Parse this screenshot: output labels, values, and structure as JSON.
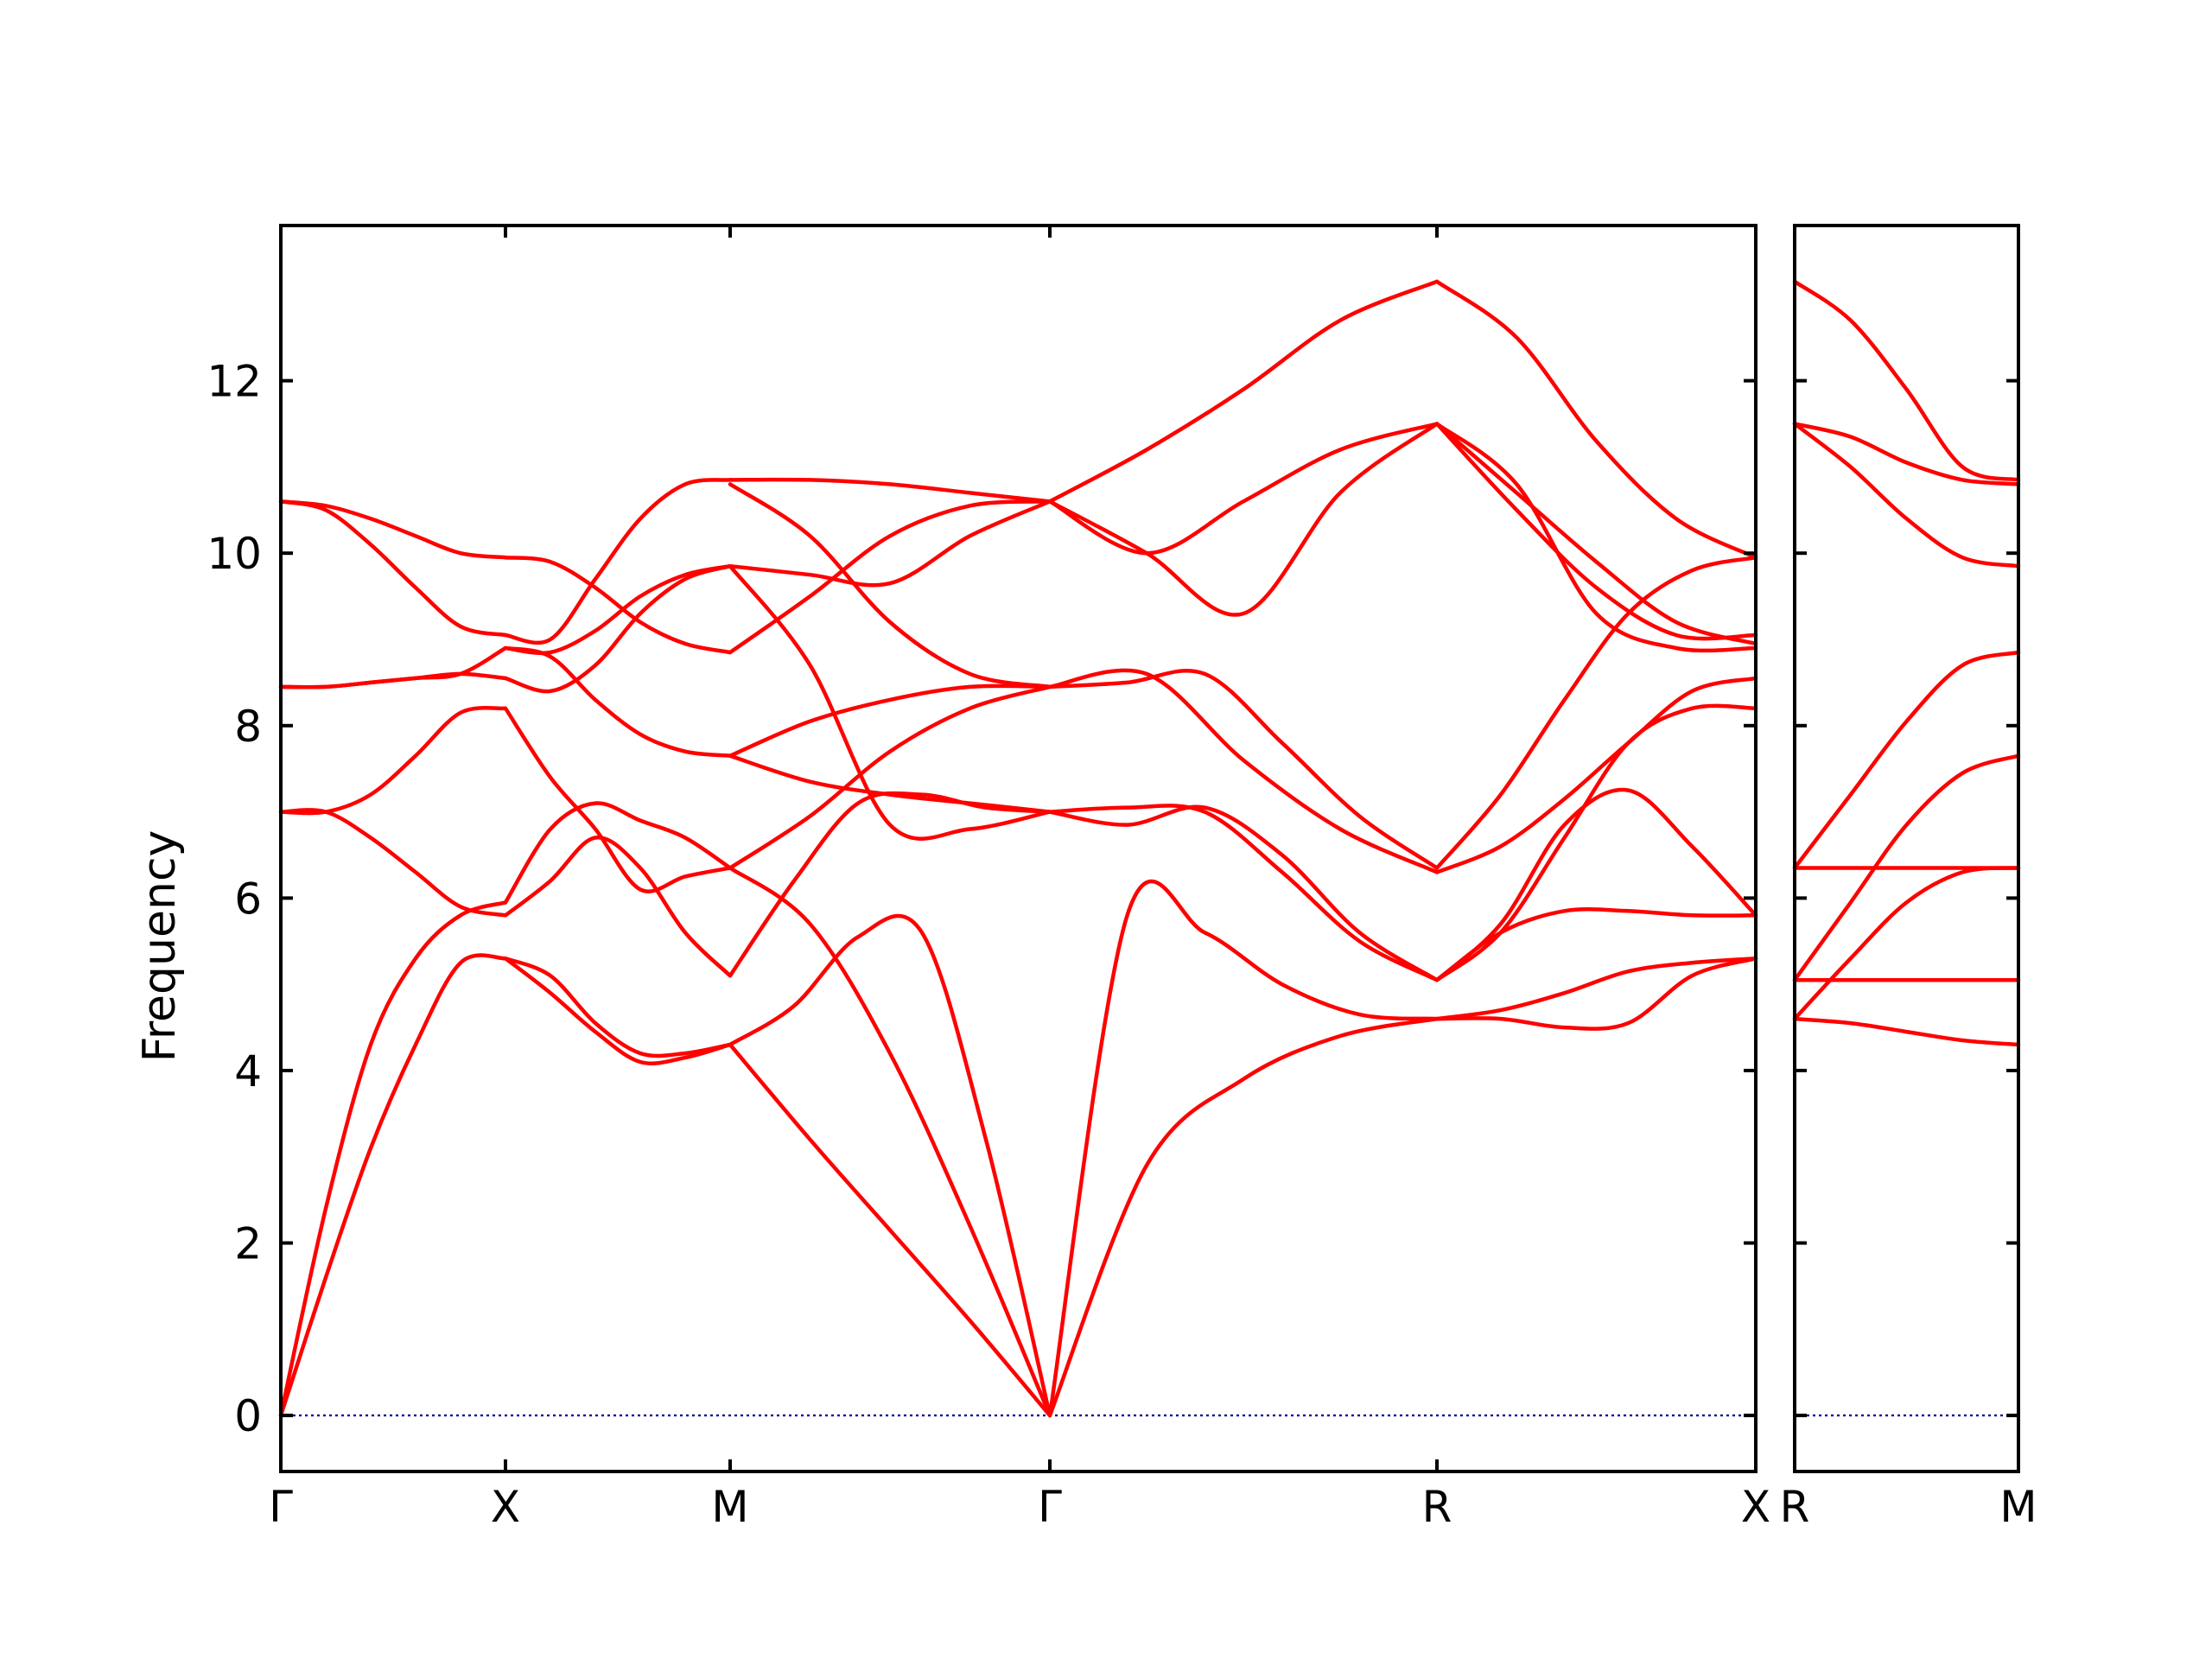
{
  "chart_data": {
    "type": "line",
    "title": "",
    "ylabel": "Frequency",
    "xlabel": "",
    "ylim": [
      -0.65,
      13.8
    ],
    "yticks": [
      0,
      2,
      4,
      6,
      8,
      10,
      12
    ],
    "grid": false,
    "colors": {
      "bands": "#ff0000",
      "zero_line": "#00008b",
      "axes": "#000000"
    },
    "panels": [
      {
        "name": "panel-main",
        "labels": [
          "Γ",
          "X",
          "M",
          "Γ",
          "R",
          "X"
        ],
        "segments": [
          {
            "from": "Γ",
            "to": "X",
            "bands": [
              [
                0.0,
                1.6,
                3.1,
                4.3,
                5.25,
                5.3
              ],
              [
                0.0,
                2.4,
                4.3,
                5.3,
                5.8,
                5.95
              ],
              [
                7.0,
                7.0,
                6.7,
                6.3,
                5.9,
                5.8
              ],
              [
                7.0,
                7.0,
                7.2,
                7.65,
                8.15,
                8.2
              ],
              [
                8.45,
                8.45,
                8.5,
                8.55,
                8.6,
                8.55
              ],
              [
                8.45,
                8.45,
                8.5,
                8.55,
                8.6,
                8.9
              ],
              [
                10.6,
                10.5,
                10.1,
                9.6,
                9.15,
                9.05
              ],
              [
                10.6,
                10.55,
                10.4,
                10.2,
                10.0,
                9.95
              ]
            ]
          },
          {
            "from": "X",
            "to": "M",
            "bands": [
              [
                5.3,
                4.9,
                4.45,
                4.1,
                4.15,
                4.3
              ],
              [
                5.3,
                5.1,
                4.55,
                4.2,
                4.2,
                4.3
              ],
              [
                5.8,
                6.2,
                6.7,
                6.35,
                5.6,
                5.1
              ],
              [
                8.2,
                7.4,
                6.8,
                6.1,
                6.25,
                6.35
              ],
              [
                5.95,
                6.8,
                7.1,
                6.9,
                6.7,
                6.35
              ],
              [
                8.55,
                8.4,
                8.7,
                9.3,
                9.7,
                9.85
              ],
              [
                8.9,
                8.8,
                8.3,
                7.9,
                7.7,
                7.65
              ],
              [
                8.9,
                8.85,
                9.1,
                9.5,
                9.75,
                9.85
              ],
              [
                9.05,
                9.0,
                9.7,
                10.4,
                10.8,
                10.85
              ],
              [
                9.95,
                9.9,
                9.6,
                9.2,
                8.95,
                8.85
              ]
            ]
          },
          {
            "from": "M",
            "to": "Γ",
            "bands": [
              [
                4.3,
                3.2,
                2.15,
                1.1,
                0.0
              ],
              [
                4.3,
                4.75,
                5.55,
                5.6,
                3.2,
                0.0
              ],
              [
                5.1,
                6.2,
                7.1,
                7.2,
                7.05,
                7.0
              ],
              [
                6.35,
                5.7,
                4.2,
                2.2,
                0.0
              ],
              [
                6.35,
                6.95,
                7.7,
                8.2,
                8.45
              ],
              [
                7.65,
                7.35,
                7.2,
                7.1,
                7.0
              ],
              [
                7.65,
                8.05,
                8.3,
                8.45,
                8.45
              ],
              [
                9.85,
                8.7,
                6.85,
                6.8,
                7.0
              ],
              [
                9.85,
                9.75,
                9.65,
                10.2,
                10.6
              ],
              [
                8.85,
                9.5,
                10.2,
                10.55,
                10.6
              ],
              [
                10.8,
                10.2,
                9.2,
                8.6,
                8.45
              ],
              [
                10.85,
                10.85,
                10.8,
                10.7,
                10.6
              ]
            ]
          },
          {
            "from": "Γ",
            "to": "R",
            "bands": [
              [
                0.0,
                2.9,
                3.9,
                4.4,
                4.6
              ],
              [
                0.0,
                5.8,
                5.6,
                5.0,
                4.65,
                4.6
              ],
              [
                7.0,
                6.85,
                7.05,
                6.5,
                5.6,
                5.05
              ],
              [
                7.0,
                7.05,
                7.0,
                6.3,
                5.5,
                5.05
              ],
              [
                8.45,
                8.6,
                7.6,
                6.8,
                6.3
              ],
              [
                8.45,
                8.5,
                8.6,
                7.8,
                6.95,
                6.35
              ],
              [
                10.6,
                10.0,
                9.3,
                10.7,
                11.5
              ],
              [
                10.6,
                10.0,
                10.6,
                11.2,
                11.5
              ],
              [
                10.6,
                11.2,
                11.9,
                12.7,
                13.15
              ]
            ]
          },
          {
            "from": "R",
            "to": "X",
            "bands": [
              [
                4.6,
                4.6,
                4.5,
                4.55,
                5.1,
                5.3
              ],
              [
                4.6,
                4.7,
                4.9,
                5.15,
                5.25,
                5.3
              ],
              [
                5.05,
                5.6,
                5.85,
                5.85,
                5.8,
                5.8
              ],
              [
                5.05,
                5.7,
                6.85,
                7.25,
                6.6,
                5.8
              ],
              [
                5.05,
                5.6,
                6.7,
                7.8,
                8.2,
                8.2
              ],
              [
                6.3,
                6.6,
                7.15,
                7.8,
                8.4,
                8.55
              ],
              [
                6.35,
                7.2,
                8.3,
                9.3,
                9.8,
                9.95
              ],
              [
                11.5,
                10.8,
                9.3,
                8.9,
                8.9
              ],
              [
                11.5,
                10.7,
                9.9,
                9.2,
                8.95
              ],
              [
                11.5,
                10.5,
                9.6,
                9.05,
                9.05
              ],
              [
                13.15,
                12.5,
                11.3,
                10.4,
                9.95
              ]
            ]
          }
        ]
      },
      {
        "name": "panel-side",
        "labels": [
          "R",
          "M"
        ],
        "segments": [
          {
            "from": "R",
            "to": "M",
            "bands": [
              [
                4.6,
                4.55,
                4.45,
                4.35,
                4.3
              ],
              [
                5.05,
                5.05,
                5.05,
                5.05,
                5.05
              ],
              [
                4.6,
                5.3,
                5.95,
                6.3,
                6.35
              ],
              [
                5.05,
                5.95,
                6.85,
                7.45,
                7.65
              ],
              [
                6.35,
                6.35,
                6.35,
                6.35,
                6.35
              ],
              [
                6.35,
                7.2,
                8.05,
                8.7,
                8.85
              ],
              [
                11.5,
                11.0,
                10.4,
                9.95,
                9.85
              ],
              [
                11.5,
                11.35,
                11.05,
                10.85,
                10.8
              ],
              [
                13.15,
                12.7,
                11.9,
                11.0,
                10.85
              ]
            ]
          }
        ]
      }
    ]
  }
}
